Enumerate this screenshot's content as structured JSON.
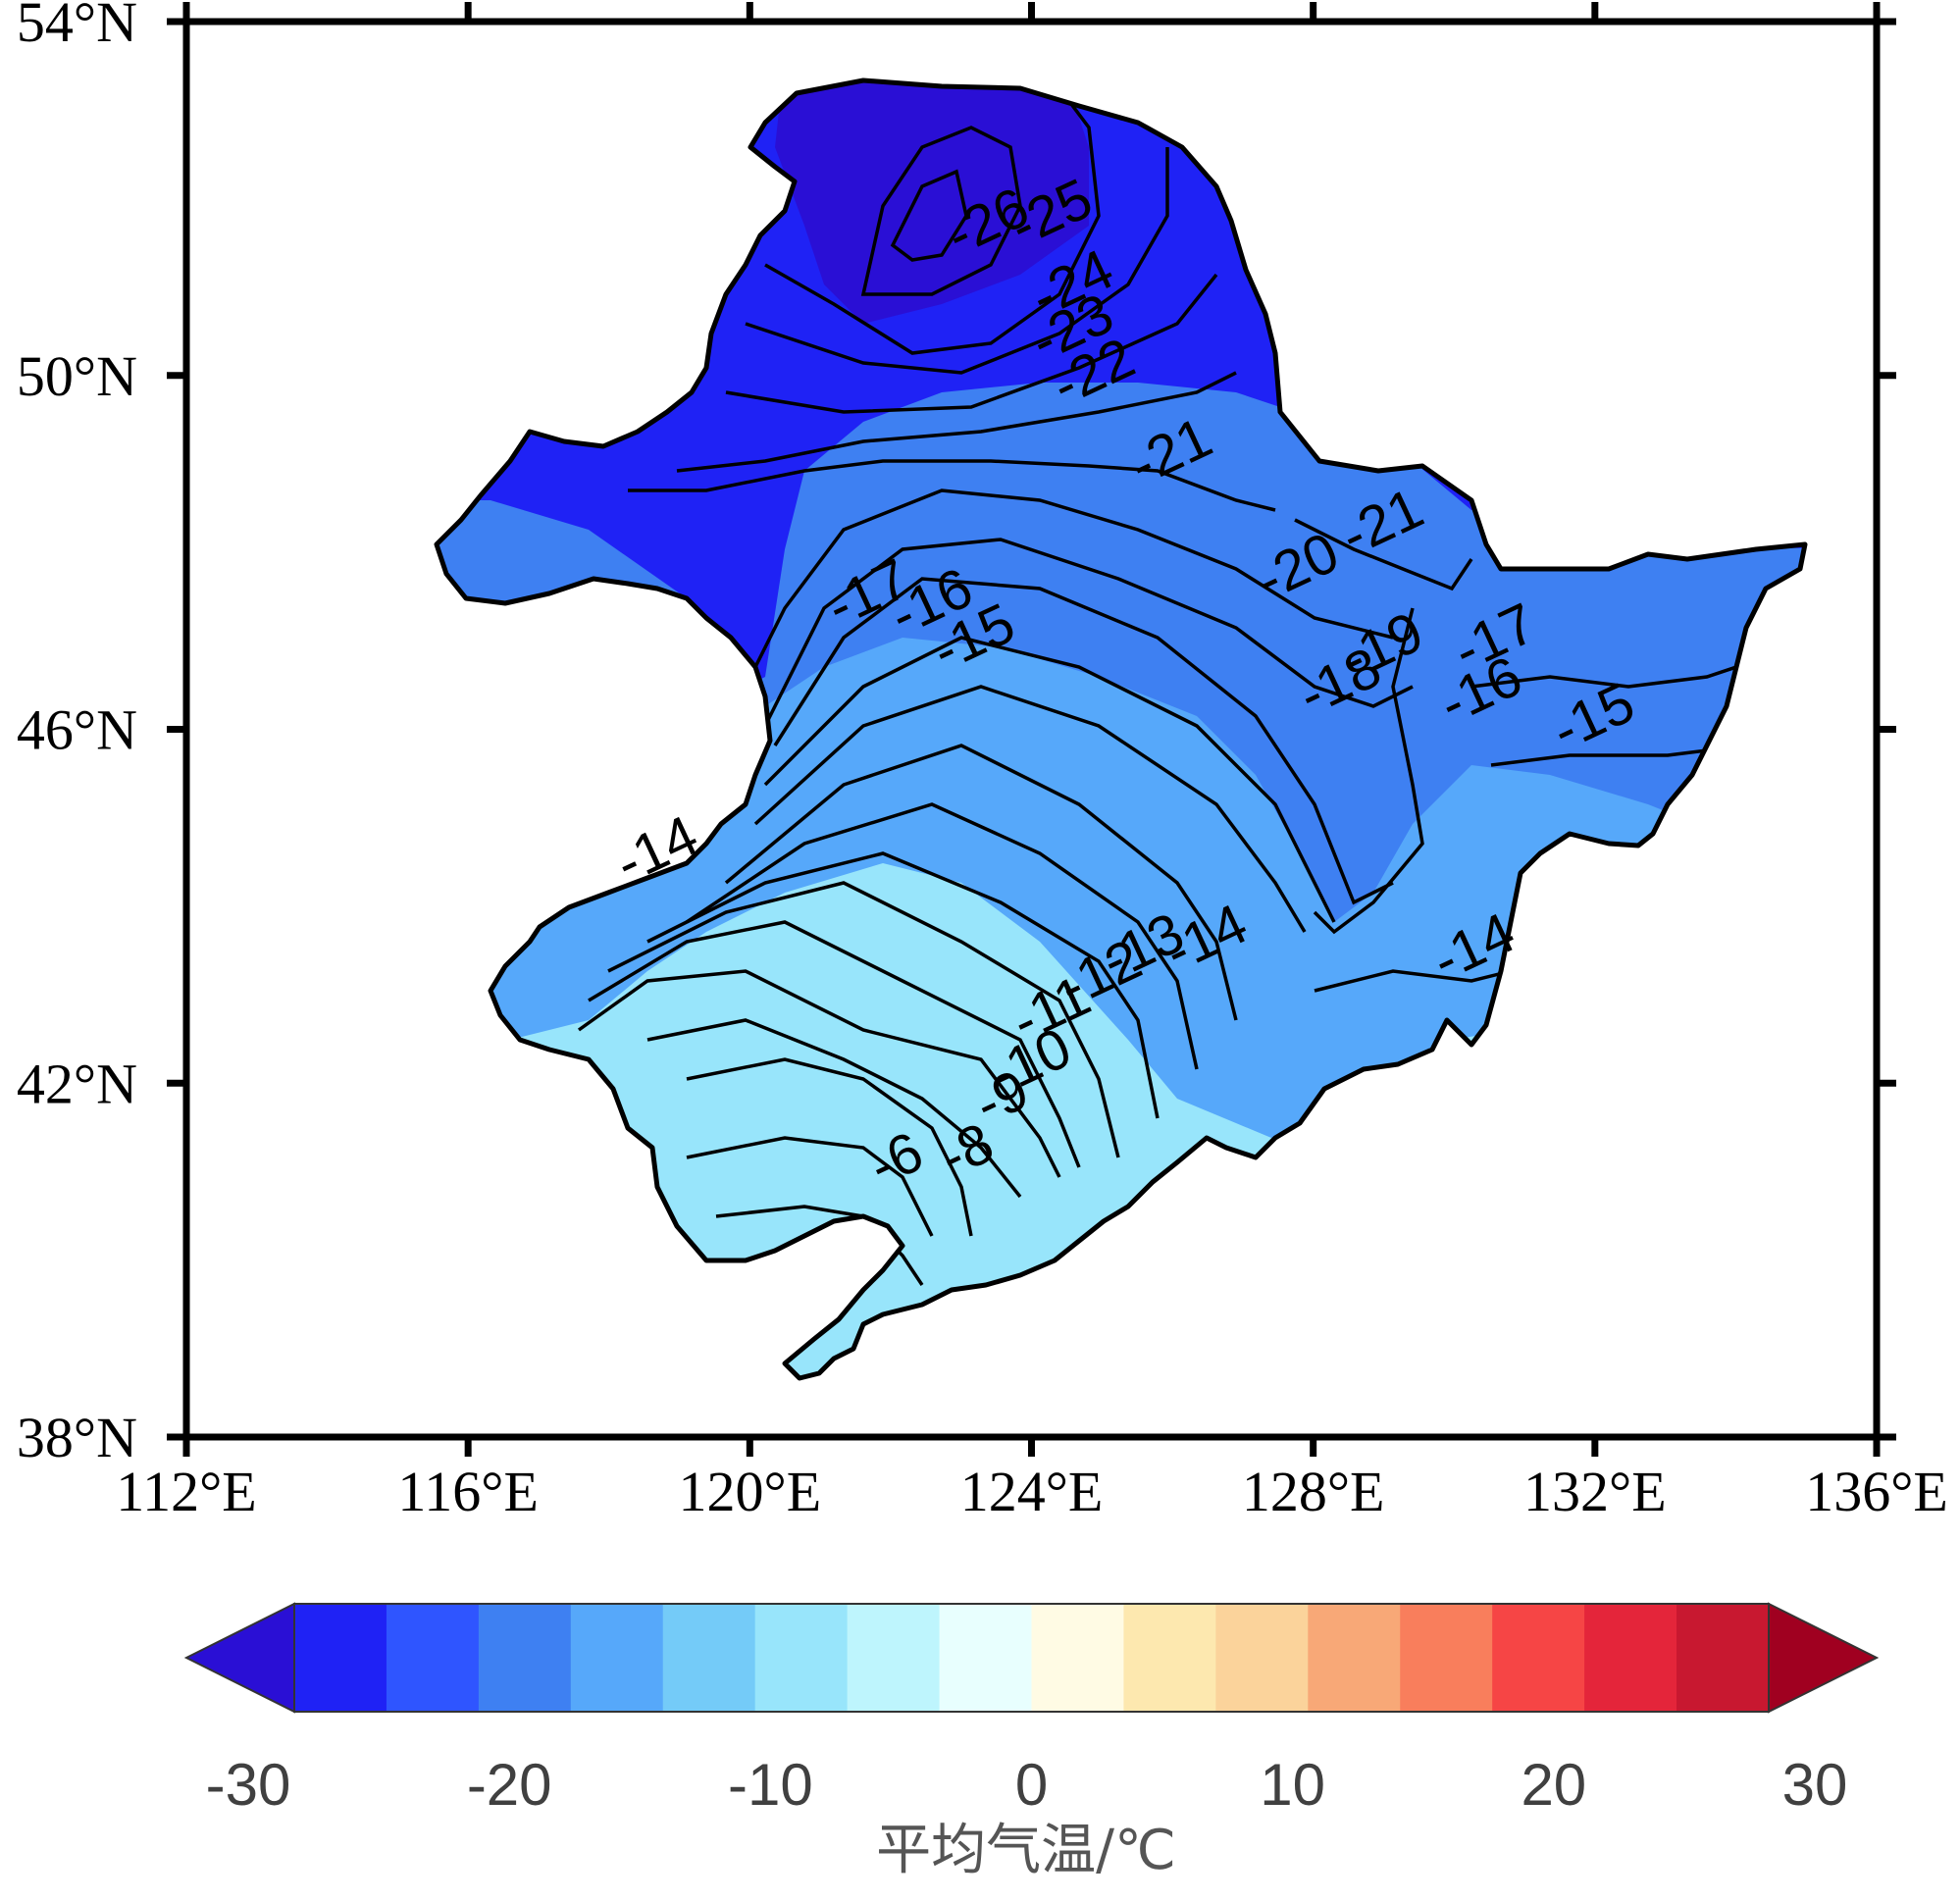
{
  "map": {
    "region": "Northeast China",
    "lon_range": [
      112,
      136
    ],
    "lat_range": [
      38,
      54
    ],
    "x_ticks": [
      "112°E",
      "116°E",
      "120°E",
      "124°E",
      "128°E",
      "132°E",
      "136°E"
    ],
    "y_ticks": [
      "54°N",
      "50°N",
      "46°N",
      "42°N",
      "38°N"
    ],
    "contour_labels": [
      "-26",
      "-25",
      "-24",
      "-23",
      "-22",
      "-21",
      "-21",
      "-20",
      "-19",
      "-18",
      "-17",
      "-16",
      "-16",
      "-17",
      "-15",
      "-15",
      "-14",
      "-14",
      "-14",
      "-13",
      "-12",
      "-11",
      "-10",
      "-9",
      "-8",
      "-6"
    ]
  },
  "colorbar": {
    "title": "平均气温/℃",
    "tick_labels": [
      "-30",
      "-20",
      "-10",
      "0",
      "10",
      "20",
      "30"
    ],
    "colors": [
      "#2a0fd5",
      "#1f22f5",
      "#2f55ff",
      "#3e80f2",
      "#56a8fa",
      "#74cbf8",
      "#98e5fb",
      "#bef5fd",
      "#e8fffe",
      "#fffbe4",
      "#fde8af",
      "#fbd39b",
      "#f8a877",
      "#f97e5c",
      "#f64545",
      "#e4253a",
      "#c81830",
      "#a00020"
    ],
    "range": [
      -30,
      30
    ]
  },
  "chart_data": {
    "type": "heatmap",
    "title": "",
    "xlabel": "",
    "ylabel": "",
    "xlim": [
      112,
      136
    ],
    "ylim": [
      38,
      54
    ],
    "legend_title": "平均气温/℃",
    "color_range": [
      -30,
      30
    ],
    "contour_levels": [
      -26,
      -25,
      -24,
      -23,
      -22,
      -21,
      -20,
      -19,
      -18,
      -17,
      -16,
      -15,
      -14,
      -13,
      -12,
      -11,
      -10,
      -9,
      -8,
      -6
    ],
    "labeled_contours": [
      {
        "value": -26,
        "lon": 123.4,
        "lat": 51.7
      },
      {
        "value": -25,
        "lon": 124.3,
        "lat": 51.8
      },
      {
        "value": -24,
        "lon": 124.6,
        "lat": 51.0
      },
      {
        "value": -23,
        "lon": 124.6,
        "lat": 50.5
      },
      {
        "value": -22,
        "lon": 124.9,
        "lat": 50.0
      },
      {
        "value": -21,
        "lon": 126.0,
        "lat": 49.1
      },
      {
        "value": -21,
        "lon": 129.0,
        "lat": 48.3
      },
      {
        "value": -20,
        "lon": 127.8,
        "lat": 47.8
      },
      {
        "value": -19,
        "lon": 129.0,
        "lat": 46.9
      },
      {
        "value": -18,
        "lon": 128.4,
        "lat": 46.5
      },
      {
        "value": -17,
        "lon": 121.7,
        "lat": 47.5
      },
      {
        "value": -16,
        "lon": 122.6,
        "lat": 47.4
      },
      {
        "value": -16,
        "lon": 130.4,
        "lat": 46.4
      },
      {
        "value": -17,
        "lon": 130.6,
        "lat": 47.0
      },
      {
        "value": -15,
        "lon": 123.2,
        "lat": 47.0
      },
      {
        "value": -15,
        "lon": 132.0,
        "lat": 46.1
      },
      {
        "value": -14,
        "lon": 118.7,
        "lat": 44.6
      },
      {
        "value": -14,
        "lon": 126.5,
        "lat": 43.6
      },
      {
        "value": -14,
        "lon": 130.3,
        "lat": 43.5
      },
      {
        "value": -13,
        "lon": 125.6,
        "lat": 43.5
      },
      {
        "value": -12,
        "lon": 125.0,
        "lat": 43.2
      },
      {
        "value": -11,
        "lon": 124.3,
        "lat": 42.8
      },
      {
        "value": -10,
        "lon": 124.0,
        "lat": 42.2
      },
      {
        "value": -9,
        "lon": 123.6,
        "lat": 41.8
      },
      {
        "value": -8,
        "lon": 123.1,
        "lat": 41.2
      },
      {
        "value": -6,
        "lon": 122.1,
        "lat": 41.1
      }
    ]
  }
}
